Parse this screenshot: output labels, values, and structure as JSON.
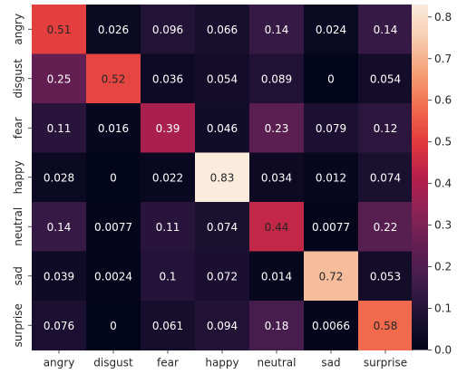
{
  "chart_data": {
    "type": "heatmap",
    "title": "",
    "xlabel": "",
    "ylabel": "",
    "x_categories": [
      "angry",
      "disgust",
      "fear",
      "happy",
      "neutral",
      "sad",
      "surprise"
    ],
    "y_categories": [
      "angry",
      "disgust",
      "fear",
      "happy",
      "neutral",
      "sad",
      "surprise"
    ],
    "values": [
      [
        0.51,
        0.026,
        0.096,
        0.066,
        0.14,
        0.024,
        0.14
      ],
      [
        0.25,
        0.52,
        0.036,
        0.054,
        0.089,
        0,
        0.054
      ],
      [
        0.11,
        0.016,
        0.39,
        0.046,
        0.23,
        0.079,
        0.12
      ],
      [
        0.028,
        0,
        0.022,
        0.83,
        0.034,
        0.012,
        0.074
      ],
      [
        0.14,
        0.0077,
        0.11,
        0.074,
        0.44,
        0.0077,
        0.22
      ],
      [
        0.039,
        0.0024,
        0.1,
        0.072,
        0.014,
        0.72,
        0.053
      ],
      [
        0.076,
        0,
        0.061,
        0.094,
        0.18,
        0.0066,
        0.58
      ]
    ],
    "value_labels": [
      [
        "0.51",
        "0.026",
        "0.096",
        "0.066",
        "0.14",
        "0.024",
        "0.14"
      ],
      [
        "0.25",
        "0.52",
        "0.036",
        "0.054",
        "0.089",
        "0",
        "0.054"
      ],
      [
        "0.11",
        "0.016",
        "0.39",
        "0.046",
        "0.23",
        "0.079",
        "0.12"
      ],
      [
        "0.028",
        "0",
        "0.022",
        "0.83",
        "0.034",
        "0.012",
        "0.074"
      ],
      [
        "0.14",
        "0.0077",
        "0.11",
        "0.074",
        "0.44",
        "0.0077",
        "0.22"
      ],
      [
        "0.039",
        "0.0024",
        "0.1",
        "0.072",
        "0.014",
        "0.72",
        "0.053"
      ],
      [
        "0.076",
        "0",
        "0.061",
        "0.094",
        "0.18",
        "0.0066",
        "0.58"
      ]
    ],
    "colormap": "rocket",
    "colorbar": {
      "range": [
        0,
        0.83
      ],
      "ticks": [
        0.0,
        0.1,
        0.2,
        0.3,
        0.4,
        0.5,
        0.6,
        0.7,
        0.8
      ],
      "tick_labels": [
        "0.0",
        "0.1",
        "0.2",
        "0.3",
        "0.4",
        "0.5",
        "0.6",
        "0.7",
        "0.8"
      ],
      "placement": "right"
    },
    "grid": false
  }
}
